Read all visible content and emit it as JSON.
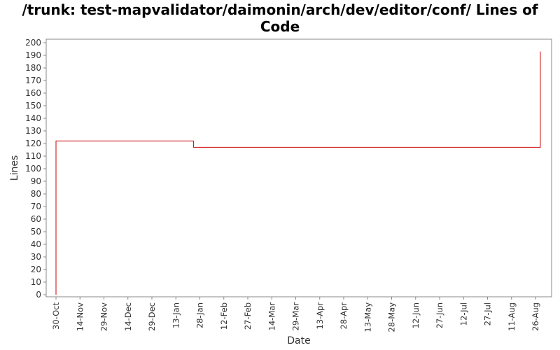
{
  "chart_data": {
    "type": "line",
    "title_line1": "/trunk: test-mapvalidator/daimonin/arch/dev/editor/conf/ Lines of",
    "title_line2": "Code",
    "xlabel": "Date",
    "ylabel": "Lines",
    "ylim": [
      0,
      200
    ],
    "ytick_step": 10,
    "x_tick_labels": [
      "30-Oct",
      "14-Nov",
      "29-Nov",
      "14-Dec",
      "29-Dec",
      "13-Jan",
      "28-Jan",
      "12-Feb",
      "27-Feb",
      "14-Mar",
      "29-Mar",
      "13-Apr",
      "28-Apr",
      "13-May",
      "28-May",
      "12-Jun",
      "27-Jun",
      "12-Jul",
      "27-Jul",
      "11-Aug",
      "26-Aug"
    ],
    "x_tick_days": [
      0,
      15,
      30,
      45,
      60,
      75,
      90,
      105,
      120,
      135,
      150,
      165,
      180,
      195,
      210,
      225,
      240,
      255,
      270,
      285,
      300
    ],
    "x_range_days": [
      -6,
      306
    ],
    "series_color": "#cc0000",
    "line_style": "step",
    "points": [
      {
        "day": 0,
        "value": 0
      },
      {
        "day": 0,
        "value": 122
      },
      {
        "day": 86,
        "value": 122
      },
      {
        "day": 86,
        "value": 117
      },
      {
        "day": 303,
        "value": 117
      },
      {
        "day": 303,
        "value": 193
      }
    ],
    "grid": false
  }
}
